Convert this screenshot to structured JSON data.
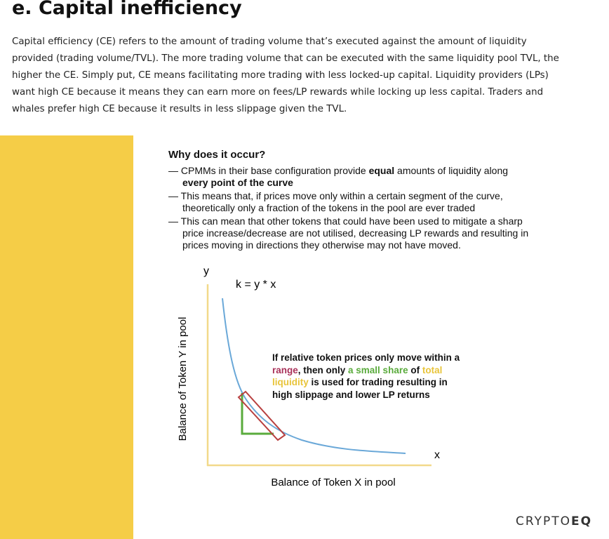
{
  "section": {
    "heading": "e. Capital inefficiency",
    "paragraph": "Capital efficiency (CE) refers to the amount of trading volume that’s executed against the amount of liquidity provided (trading volume/TVL). The more trading volume that can be executed with the same liquidity pool TVL, the higher the CE. Simply put, CE means facilitating more trading with less locked-up capital. Liquidity providers (LPs) want high CE because it means they can earn more on fees/LP rewards while locking up less capital. Traders and whales prefer high CE because it results in less slippage given the TVL."
  },
  "figure": {
    "question": "Why does it occur?",
    "bullets": [
      [
        "CPMMs in their base configuration provide ",
        "equal",
        " amounts of liquidity along ",
        "every point of the curve"
      ],
      [
        "This means that, if prices move only within a certain segment of the curve, theoretically only a fraction of the tokens in the pool are ever traded"
      ],
      [
        "This can mean that other tokens that could have been used to mitigate a sharp price increase/decrease are not utilised, decreasing LP rewards and resulting in prices moving in directions they otherwise may not have moved."
      ]
    ],
    "y_label": "y",
    "x_label": "x",
    "formula": "k = y * x",
    "y_axis_title": "Balance of Token Y in pool",
    "x_axis_title": "Balance of Token X in pool",
    "annotation": [
      "If relative token prices only move within a ",
      "range",
      ", then only ",
      "a small share",
      " of ",
      "total liquidity",
      " is used for trading resulting in high slippage and lower LP returns"
    ]
  },
  "logo": [
    "CRYPTO",
    "EQ"
  ]
}
